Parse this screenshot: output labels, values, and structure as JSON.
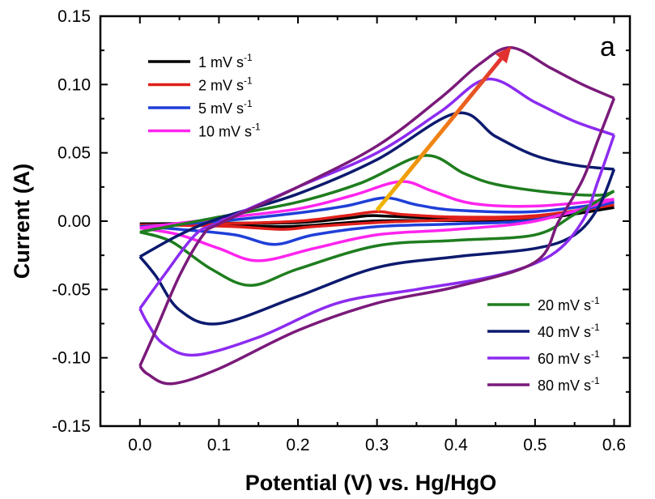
{
  "chart_data": {
    "type": "line",
    "title": "",
    "panel_label": "a",
    "xlabel": "Potential (V) vs. Hg/HgO",
    "ylabel": "Current (A)",
    "xlim": [
      -0.05,
      0.62
    ],
    "ylim": [
      -0.15,
      0.15
    ],
    "xticks": [
      "0.0",
      "0.1",
      "0.2",
      "0.3",
      "0.4",
      "0.5",
      "0.6"
    ],
    "yticks": [
      "0.15",
      "0.10",
      "0.05",
      "0.00",
      "-0.05",
      "-0.10",
      "-0.15"
    ],
    "xtick_values": [
      0,
      0.1,
      0.2,
      0.3,
      0.4,
      0.5,
      0.6
    ],
    "ytick_values": [
      0.15,
      0.1,
      0.05,
      0.0,
      -0.05,
      -0.1,
      -0.15
    ],
    "grid": false,
    "arrow": {
      "from": [
        0.3,
        0.008
      ],
      "to": [
        0.47,
        0.128
      ],
      "color": "#f0b800",
      "head_color": "#e03030"
    },
    "series": [
      {
        "name": "1 mV s",
        "sup": "-1",
        "color": "#000000",
        "anodic": [
          [
            0,
            -0.002
          ],
          [
            0.1,
            -0.0015
          ],
          [
            0.2,
            -0.001
          ],
          [
            0.26,
            0.002
          ],
          [
            0.29,
            0.004
          ],
          [
            0.32,
            0.0035
          ],
          [
            0.4,
            0.002
          ],
          [
            0.5,
            0.003
          ],
          [
            0.6,
            0.01
          ]
        ],
        "cathodic": [
          [
            0.6,
            0.01
          ],
          [
            0.5,
            0.0015
          ],
          [
            0.4,
            0.0005
          ],
          [
            0.3,
            0.0002
          ],
          [
            0.22,
            -0.003
          ],
          [
            0.18,
            -0.004
          ],
          [
            0.12,
            -0.003
          ],
          [
            0.05,
            -0.002
          ],
          [
            0,
            -0.002
          ]
        ]
      },
      {
        "name": "2 mV s",
        "sup": "-1",
        "color": "#e0201c",
        "anodic": [
          [
            0,
            -0.003
          ],
          [
            0.1,
            -0.002
          ],
          [
            0.2,
            0.0
          ],
          [
            0.26,
            0.004
          ],
          [
            0.3,
            0.007
          ],
          [
            0.33,
            0.005
          ],
          [
            0.4,
            0.003
          ],
          [
            0.5,
            0.004
          ],
          [
            0.6,
            0.012
          ]
        ],
        "cathodic": [
          [
            0.6,
            0.012
          ],
          [
            0.5,
            0.003
          ],
          [
            0.4,
            0.001
          ],
          [
            0.3,
            -0.001
          ],
          [
            0.22,
            -0.004
          ],
          [
            0.18,
            -0.006
          ],
          [
            0.12,
            -0.004
          ],
          [
            0.05,
            -0.003
          ],
          [
            0,
            -0.003
          ]
        ]
      },
      {
        "name": "5 mV s",
        "sup": "-1",
        "color": "#1f3fd8",
        "anodic": [
          [
            0,
            -0.004
          ],
          [
            0.1,
            0.0
          ],
          [
            0.2,
            0.006
          ],
          [
            0.26,
            0.011
          ],
          [
            0.31,
            0.017
          ],
          [
            0.35,
            0.012
          ],
          [
            0.4,
            0.008
          ],
          [
            0.5,
            0.007
          ],
          [
            0.6,
            0.014
          ]
        ],
        "cathodic": [
          [
            0.6,
            0.014
          ],
          [
            0.5,
            0.001
          ],
          [
            0.4,
            -0.002
          ],
          [
            0.3,
            -0.004
          ],
          [
            0.22,
            -0.01
          ],
          [
            0.17,
            -0.017
          ],
          [
            0.12,
            -0.01
          ],
          [
            0.05,
            -0.006
          ],
          [
            0,
            -0.004
          ]
        ]
      },
      {
        "name": "10 mV s",
        "sup": "-1",
        "color": "#ff24ee",
        "anodic": [
          [
            0,
            -0.005
          ],
          [
            0.1,
            0.002
          ],
          [
            0.2,
            0.009
          ],
          [
            0.27,
            0.019
          ],
          [
            0.33,
            0.029
          ],
          [
            0.37,
            0.022
          ],
          [
            0.42,
            0.013
          ],
          [
            0.5,
            0.011
          ],
          [
            0.6,
            0.016
          ]
        ],
        "cathodic": [
          [
            0.6,
            0.016
          ],
          [
            0.5,
            0.0
          ],
          [
            0.4,
            -0.006
          ],
          [
            0.3,
            -0.01
          ],
          [
            0.22,
            -0.02
          ],
          [
            0.15,
            -0.029
          ],
          [
            0.1,
            -0.02
          ],
          [
            0.05,
            -0.01
          ],
          [
            0,
            -0.005
          ]
        ]
      },
      {
        "name": "20 mV s",
        "sup": "-1",
        "color": "#1e7d1e",
        "anodic": [
          [
            0,
            -0.008
          ],
          [
            0.1,
            0.003
          ],
          [
            0.2,
            0.014
          ],
          [
            0.28,
            0.028
          ],
          [
            0.36,
            0.048
          ],
          [
            0.41,
            0.035
          ],
          [
            0.45,
            0.027
          ],
          [
            0.52,
            0.021
          ],
          [
            0.58,
            0.019
          ],
          [
            0.6,
            0.022
          ]
        ],
        "cathodic": [
          [
            0.6,
            0.022
          ],
          [
            0.55,
            0.005
          ],
          [
            0.5,
            -0.01
          ],
          [
            0.4,
            -0.014
          ],
          [
            0.3,
            -0.018
          ],
          [
            0.2,
            -0.035
          ],
          [
            0.14,
            -0.047
          ],
          [
            0.09,
            -0.035
          ],
          [
            0.04,
            -0.015
          ],
          [
            0,
            -0.008
          ]
        ]
      },
      {
        "name": "40 mV s",
        "sup": "-1",
        "color": "#0c1a6e",
        "anodic": [
          [
            0,
            -0.026
          ],
          [
            0.05,
            -0.01
          ],
          [
            0.1,
            0.002
          ],
          [
            0.2,
            0.02
          ],
          [
            0.3,
            0.045
          ],
          [
            0.4,
            0.079
          ],
          [
            0.45,
            0.062
          ],
          [
            0.5,
            0.048
          ],
          [
            0.55,
            0.041
          ],
          [
            0.6,
            0.038
          ]
        ],
        "cathodic": [
          [
            0.6,
            0.038
          ],
          [
            0.58,
            0.01
          ],
          [
            0.55,
            -0.01
          ],
          [
            0.5,
            -0.02
          ],
          [
            0.4,
            -0.026
          ],
          [
            0.3,
            -0.034
          ],
          [
            0.2,
            -0.055
          ],
          [
            0.1,
            -0.075
          ],
          [
            0.05,
            -0.065
          ],
          [
            0.02,
            -0.04
          ],
          [
            0,
            -0.026
          ]
        ]
      },
      {
        "name": "60 mV s",
        "sup": "-1",
        "color": "#8c2bf0",
        "anodic": [
          [
            0,
            -0.064
          ],
          [
            0.03,
            -0.04
          ],
          [
            0.07,
            -0.01
          ],
          [
            0.1,
            -0.001
          ],
          [
            0.2,
            0.025
          ],
          [
            0.3,
            0.05
          ],
          [
            0.38,
            0.08
          ],
          [
            0.44,
            0.104
          ],
          [
            0.5,
            0.087
          ],
          [
            0.55,
            0.073
          ],
          [
            0.6,
            0.063
          ]
        ],
        "cathodic": [
          [
            0.6,
            0.063
          ],
          [
            0.58,
            0.03
          ],
          [
            0.56,
            0.0
          ],
          [
            0.52,
            -0.025
          ],
          [
            0.45,
            -0.04
          ],
          [
            0.35,
            -0.05
          ],
          [
            0.25,
            -0.06
          ],
          [
            0.15,
            -0.085
          ],
          [
            0.07,
            -0.098
          ],
          [
            0.03,
            -0.09
          ],
          [
            0.01,
            -0.075
          ],
          [
            0,
            -0.064
          ]
        ]
      },
      {
        "name": "80 mV s",
        "sup": "-1",
        "color": "#7a1a7a",
        "anodic": [
          [
            0,
            -0.106
          ],
          [
            0.02,
            -0.08
          ],
          [
            0.05,
            -0.04
          ],
          [
            0.08,
            -0.01
          ],
          [
            0.1,
            -0.002
          ],
          [
            0.2,
            0.025
          ],
          [
            0.3,
            0.055
          ],
          [
            0.38,
            0.09
          ],
          [
            0.43,
            0.115
          ],
          [
            0.47,
            0.127
          ],
          [
            0.52,
            0.112
          ],
          [
            0.56,
            0.1
          ],
          [
            0.6,
            0.09
          ]
        ],
        "cathodic": [
          [
            0.6,
            0.09
          ],
          [
            0.58,
            0.06
          ],
          [
            0.56,
            0.03
          ],
          [
            0.53,
            0.0
          ],
          [
            0.5,
            -0.03
          ],
          [
            0.4,
            -0.048
          ],
          [
            0.3,
            -0.06
          ],
          [
            0.2,
            -0.08
          ],
          [
            0.1,
            -0.108
          ],
          [
            0.04,
            -0.119
          ],
          [
            0.01,
            -0.112
          ],
          [
            0,
            -0.106
          ]
        ]
      }
    ]
  }
}
